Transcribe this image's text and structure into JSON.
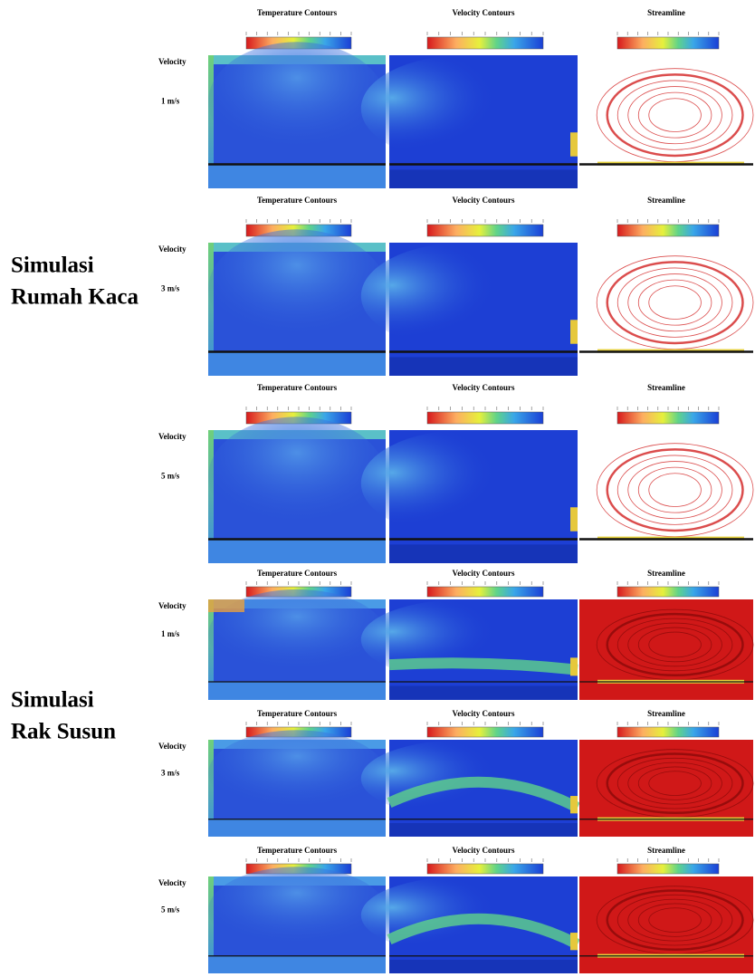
{
  "groups": [
    {
      "label": [
        "Simulasi",
        "Rumah Kaca"
      ],
      "rows": [
        {
          "velocity": "Velocity",
          "speed": "1 m/s",
          "panels": [
            "Temperature Contours",
            "Velocity Contours",
            "Streamline"
          ]
        },
        {
          "velocity": "Velocity",
          "speed": "3 m/s",
          "panels": [
            "Temperature Contours",
            "Velocity Contours",
            "Streamline"
          ]
        },
        {
          "velocity": "Velocity",
          "speed": "5 m/s",
          "panels": [
            "Temperature Contours",
            "Velocity Contours",
            "Streamline"
          ]
        }
      ]
    },
    {
      "label": [
        "Simulasi",
        "Rak Susun"
      ],
      "rows": [
        {
          "velocity": "Velocity",
          "speed": "1 m/s",
          "panels": [
            "Temperature Contours",
            "Velocity Contours",
            "Streamline"
          ]
        },
        {
          "velocity": "Velocity",
          "speed": "3 m/s",
          "panels": [
            "Temperature Contours",
            "Velocity Contours",
            "Streamline"
          ]
        },
        {
          "velocity": "Velocity",
          "speed": "5 m/s",
          "panels": [
            "Temperature Contours",
            "Velocity Contours",
            "Streamline"
          ]
        }
      ]
    }
  ]
}
